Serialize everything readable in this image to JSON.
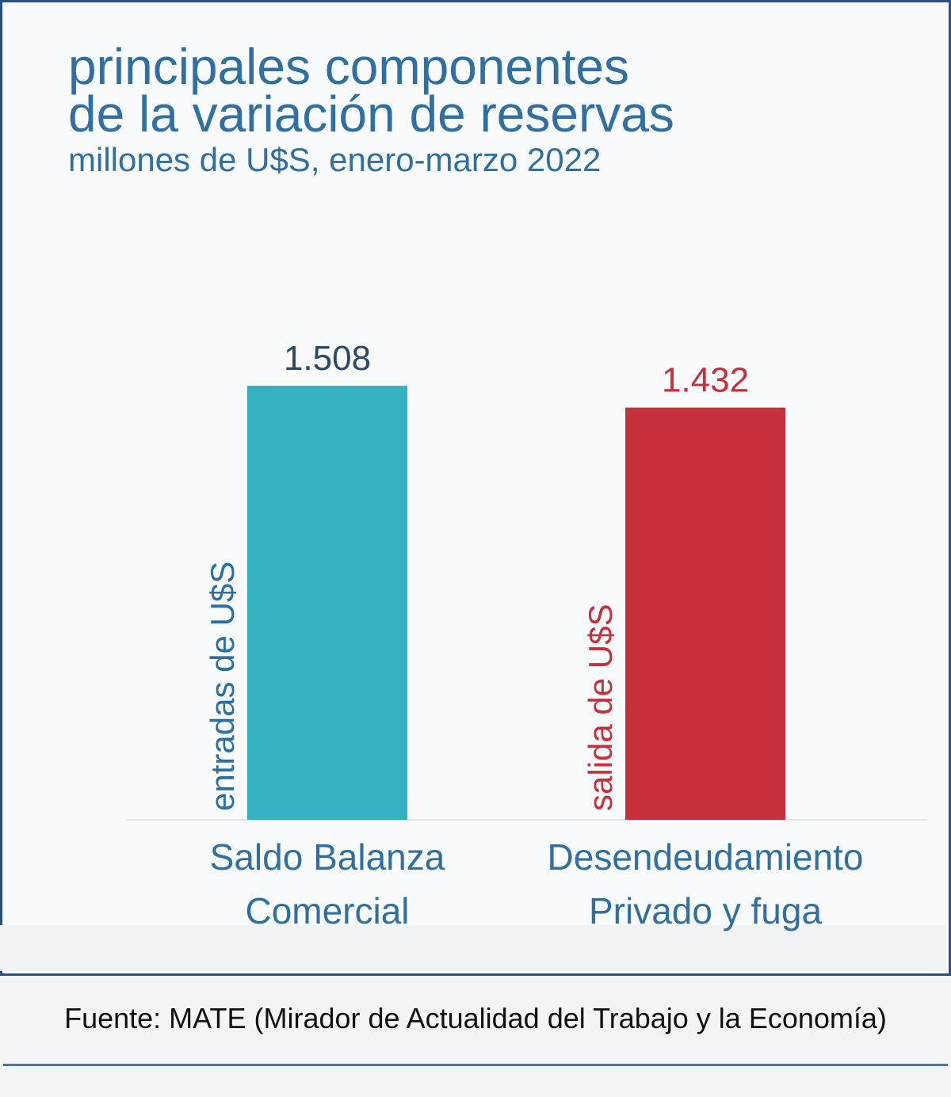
{
  "chart_data": {
    "type": "bar",
    "title": [
      "principales componentes",
      "de la variación de reservas"
    ],
    "subtitle": "millones de U$S, enero-marzo 2022",
    "categories": [
      "Saldo Balanza Comercial",
      "Desendeudamiento Privado y fuga"
    ],
    "values": [
      1508,
      1432
    ],
    "value_labels": [
      "1.508",
      "1.432"
    ],
    "colors": [
      "#35b1c1",
      "#c7303a"
    ],
    "annotations": [
      "entradas de U$S",
      "salida de U$S"
    ],
    "annotation_colors": [
      "#2a6fa3",
      "#c7303a"
    ],
    "label_colors": [
      "#2b4a66",
      "#c7303a"
    ],
    "source": "Fuente: MATE (Mirador de Actualidad del Trabajo y la Economía)"
  }
}
